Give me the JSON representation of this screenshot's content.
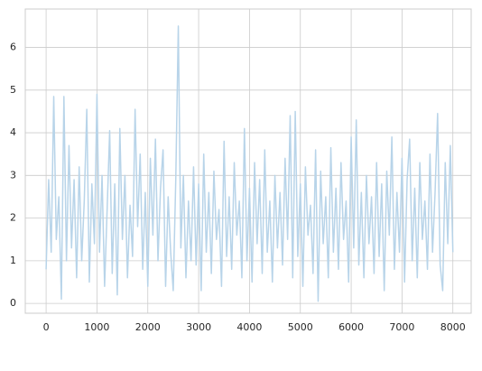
{
  "chart_data": {
    "type": "line",
    "x": [
      0,
      50,
      100,
      150,
      200,
      250,
      300,
      350,
      400,
      450,
      500,
      550,
      600,
      650,
      700,
      750,
      800,
      850,
      900,
      950,
      1000,
      1050,
      1100,
      1150,
      1200,
      1250,
      1300,
      1350,
      1400,
      1450,
      1500,
      1550,
      1600,
      1650,
      1700,
      1750,
      1800,
      1850,
      1900,
      1950,
      2000,
      2050,
      2100,
      2150,
      2200,
      2250,
      2300,
      2350,
      2400,
      2450,
      2500,
      2550,
      2600,
      2650,
      2700,
      2750,
      2800,
      2850,
      2900,
      2950,
      3000,
      3050,
      3100,
      3150,
      3200,
      3250,
      3300,
      3350,
      3400,
      3450,
      3500,
      3550,
      3600,
      3650,
      3700,
      3750,
      3800,
      3850,
      3900,
      3950,
      4000,
      4050,
      4100,
      4150,
      4200,
      4250,
      4300,
      4350,
      4400,
      4450,
      4500,
      4550,
      4600,
      4650,
      4700,
      4750,
      4800,
      4850,
      4900,
      4950,
      5000,
      5050,
      5100,
      5150,
      5200,
      5250,
      5300,
      5350,
      5400,
      5450,
      5500,
      5550,
      5600,
      5650,
      5700,
      5750,
      5800,
      5850,
      5900,
      5950,
      6000,
      6050,
      6100,
      6150,
      6200,
      6250,
      6300,
      6350,
      6400,
      6450,
      6500,
      6550,
      6600,
      6650,
      6700,
      6750,
      6800,
      6850,
      6900,
      6950,
      7000,
      7050,
      7100,
      7150,
      7200,
      7250,
      7300,
      7350,
      7400,
      7450,
      7500,
      7550,
      7600,
      7650,
      7700,
      7750,
      7800,
      7850,
      7900,
      7950,
      8000
    ],
    "series": [
      {
        "color": "#b8d4e9",
        "values": [
          0.8,
          2.9,
          1.2,
          4.85,
          1.5,
          2.5,
          0.1,
          4.85,
          1.0,
          3.7,
          1.3,
          2.9,
          0.6,
          3.2,
          1.0,
          2.4,
          4.55,
          0.5,
          2.8,
          1.4,
          4.9,
          1.2,
          3.0,
          0.4,
          2.2,
          4.05,
          0.7,
          2.8,
          0.2,
          4.1,
          1.5,
          3.0,
          0.6,
          2.3,
          1.1,
          4.55,
          1.8,
          3.5,
          0.8,
          2.6,
          0.4,
          3.4,
          1.6,
          3.85,
          1.0,
          2.7,
          3.6,
          0.4,
          2.5,
          1.2,
          0.3,
          2.9,
          6.5,
          1.3,
          3.0,
          0.6,
          2.4,
          1.0,
          3.2,
          0.9,
          2.8,
          0.3,
          3.5,
          1.2,
          2.6,
          0.7,
          3.1,
          1.5,
          2.2,
          0.4,
          3.8,
          1.1,
          2.5,
          0.8,
          3.3,
          1.6,
          2.4,
          0.6,
          4.1,
          1.0,
          2.7,
          0.5,
          3.3,
          1.4,
          2.9,
          0.7,
          3.6,
          1.2,
          2.4,
          0.5,
          3.0,
          1.3,
          2.6,
          0.9,
          3.4,
          1.5,
          4.4,
          0.6,
          4.5,
          1.1,
          2.8,
          0.4,
          3.2,
          1.6,
          2.3,
          0.7,
          3.6,
          0.05,
          3.1,
          1.4,
          2.5,
          0.6,
          3.65,
          1.2,
          2.7,
          0.8,
          3.3,
          1.5,
          2.4,
          0.5,
          3.9,
          1.3,
          4.3,
          0.9,
          2.6,
          0.6,
          3.0,
          1.4,
          2.5,
          0.7,
          3.3,
          1.1,
          2.8,
          0.3,
          3.1,
          1.6,
          3.9,
          0.8,
          2.6,
          1.2,
          3.4,
          0.5,
          2.9,
          3.85,
          1.0,
          2.7,
          0.6,
          3.3,
          1.5,
          2.4,
          0.8,
          3.5,
          1.2,
          2.6,
          4.45,
          0.9,
          0.3,
          3.3,
          1.4,
          3.7,
          1.2
        ]
      }
    ],
    "xlim": [
      -410,
      8360
    ],
    "ylim": [
      -0.23,
      6.9
    ],
    "xticks": [
      0,
      1000,
      2000,
      3000,
      4000,
      5000,
      6000,
      7000,
      8000
    ],
    "yticks": [
      0,
      1,
      2,
      3,
      4,
      5,
      6
    ],
    "grid": true
  }
}
